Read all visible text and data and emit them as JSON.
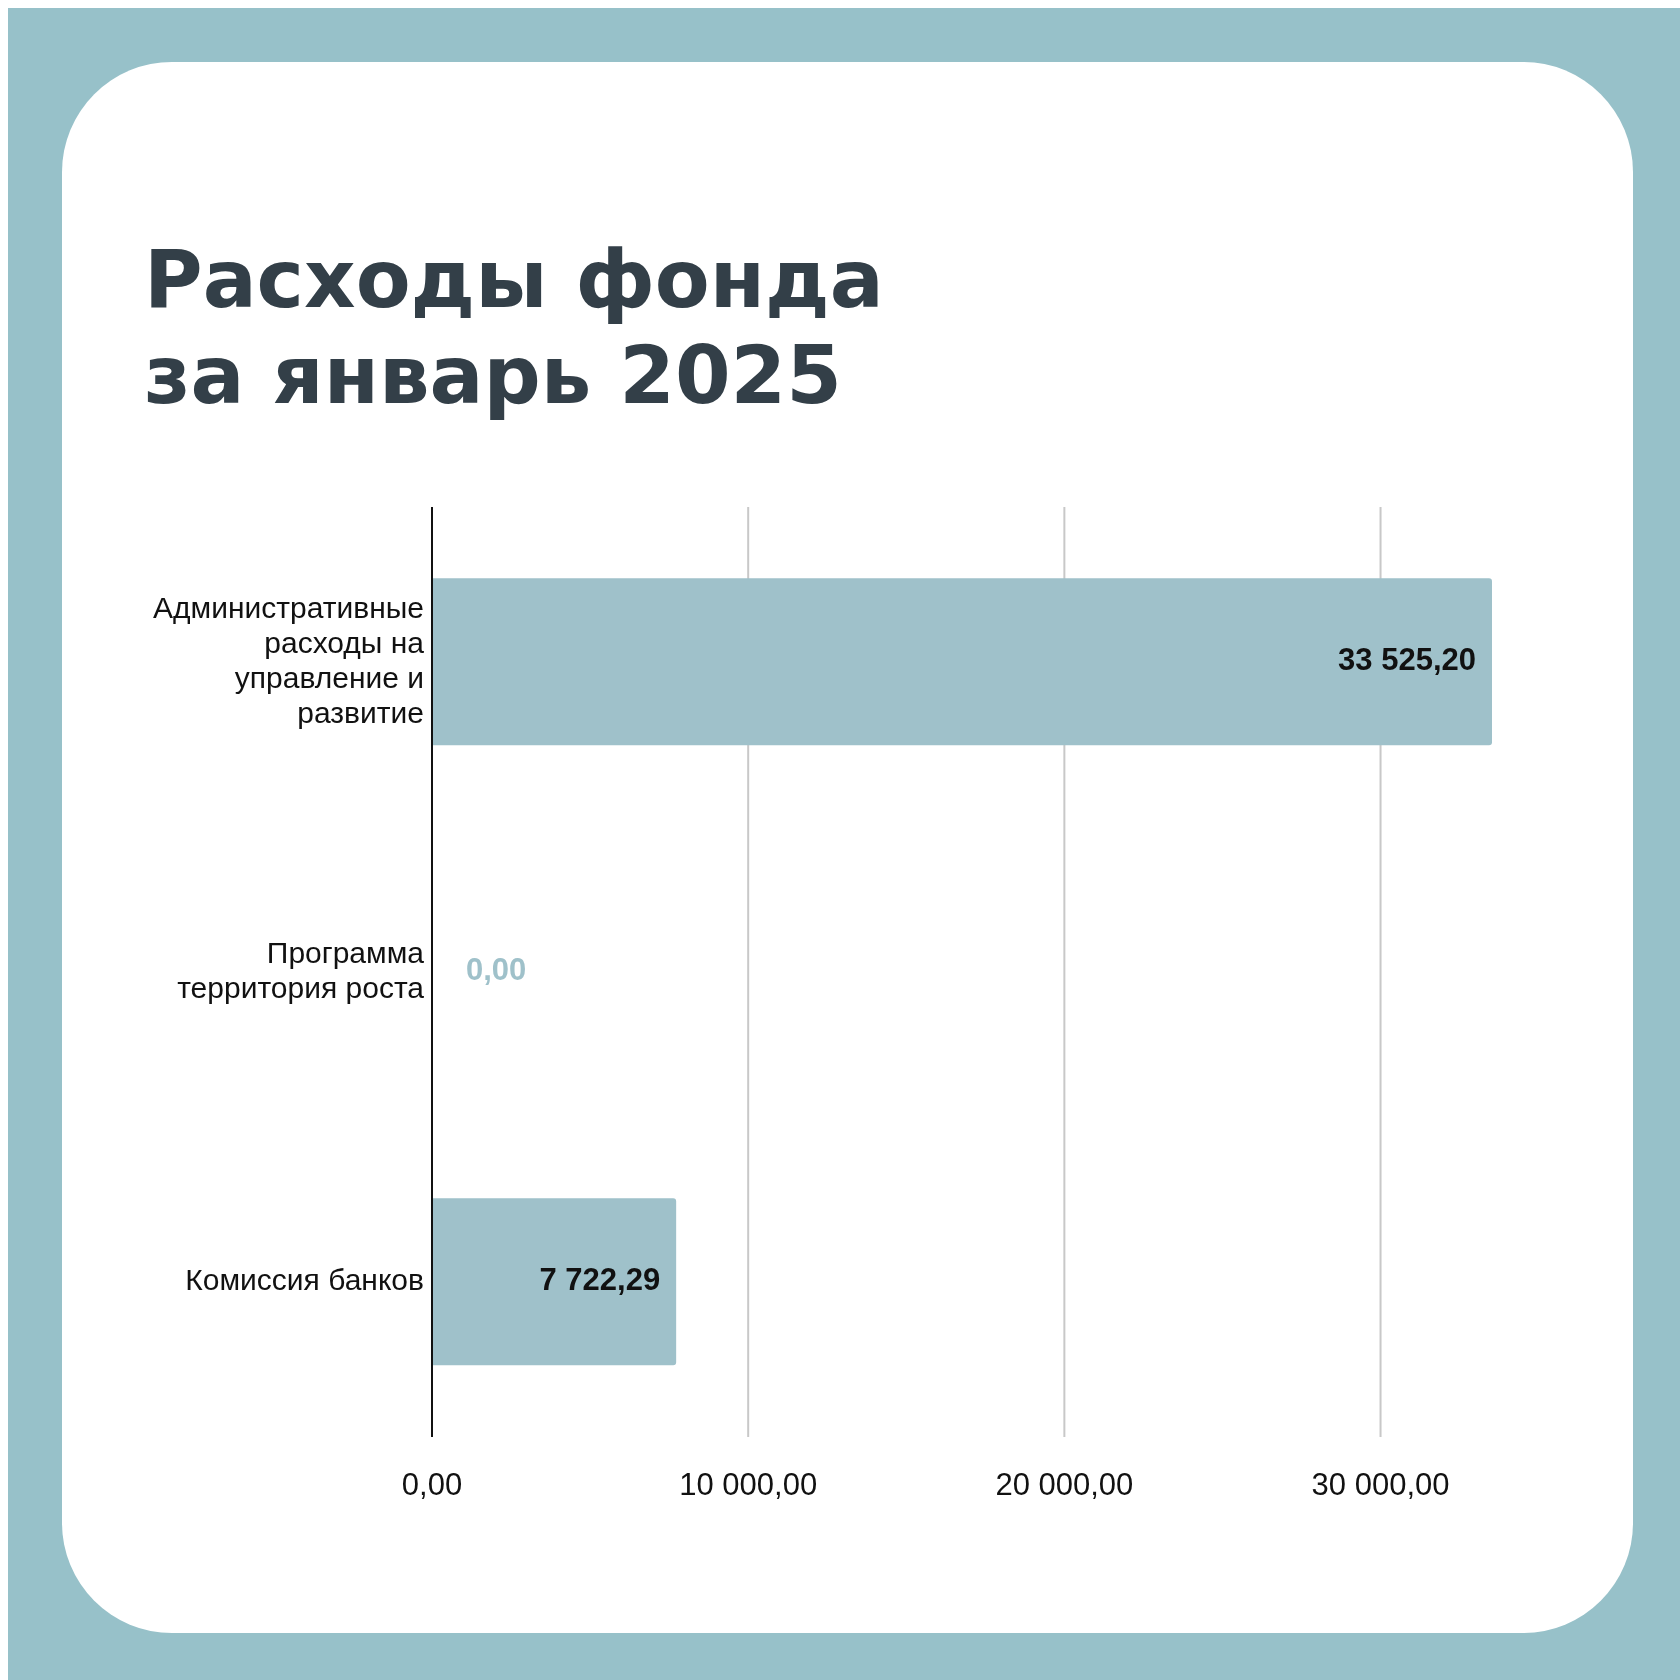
{
  "chart_data": {
    "type": "bar",
    "orientation": "horizontal",
    "title": "Расходы фонда\nза январь 2025",
    "categories": [
      "Административные расходы на управление и развитие",
      "Программа территория роста",
      "Комиссия банков"
    ],
    "values": [
      33525.2,
      0,
      7722.29
    ],
    "value_labels": [
      "33 525,20",
      "0,00",
      "7 722,29"
    ],
    "color": "#9fc1ca",
    "xlim": [
      0,
      33525.2
    ],
    "xticks": [
      {
        "value": 0,
        "label": "0,00"
      },
      {
        "value": 10000,
        "label": "10 000,00"
      },
      {
        "value": 20000,
        "label": "20 000,00"
      },
      {
        "value": 30000,
        "label": "30 000,00"
      }
    ],
    "grid": "x"
  }
}
